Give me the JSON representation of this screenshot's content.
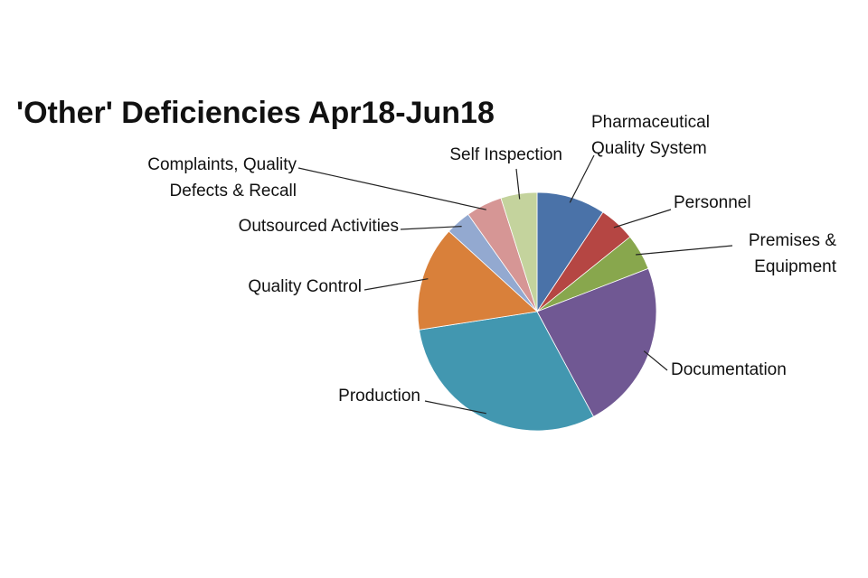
{
  "chart_data": {
    "type": "pie",
    "title": "'Other' Deficiencies Apr18-Jun18",
    "legend": "none (leader-line labels)",
    "slices": [
      {
        "label": [
          "Pharmaceutical",
          "Quality System"
        ],
        "value": 9.5,
        "color": "#4a72a8"
      },
      {
        "label": [
          "Personnel"
        ],
        "value": 5.0,
        "color": "#b54643"
      },
      {
        "label": [
          "Premises &",
          "Equipment"
        ],
        "value": 5.0,
        "color": "#88a74d"
      },
      {
        "label": [
          "Documentation"
        ],
        "value": 23.5,
        "color": "#705893"
      },
      {
        "label": [
          "Production"
        ],
        "value": 31.0,
        "color": "#4297b0"
      },
      {
        "label": [
          "Quality Control"
        ],
        "value": 14.5,
        "color": "#d9803a"
      },
      {
        "label": [
          "Outsourced Activities"
        ],
        "value": 3.5,
        "color": "#93a9d0"
      },
      {
        "label": [
          "Complaints, Quality",
          "Defects & Recall"
        ],
        "value": 5.0,
        "color": "#d69695"
      },
      {
        "label": [
          "Self Inspection"
        ],
        "value": 5.0,
        "color": "#c4d39d"
      }
    ]
  }
}
